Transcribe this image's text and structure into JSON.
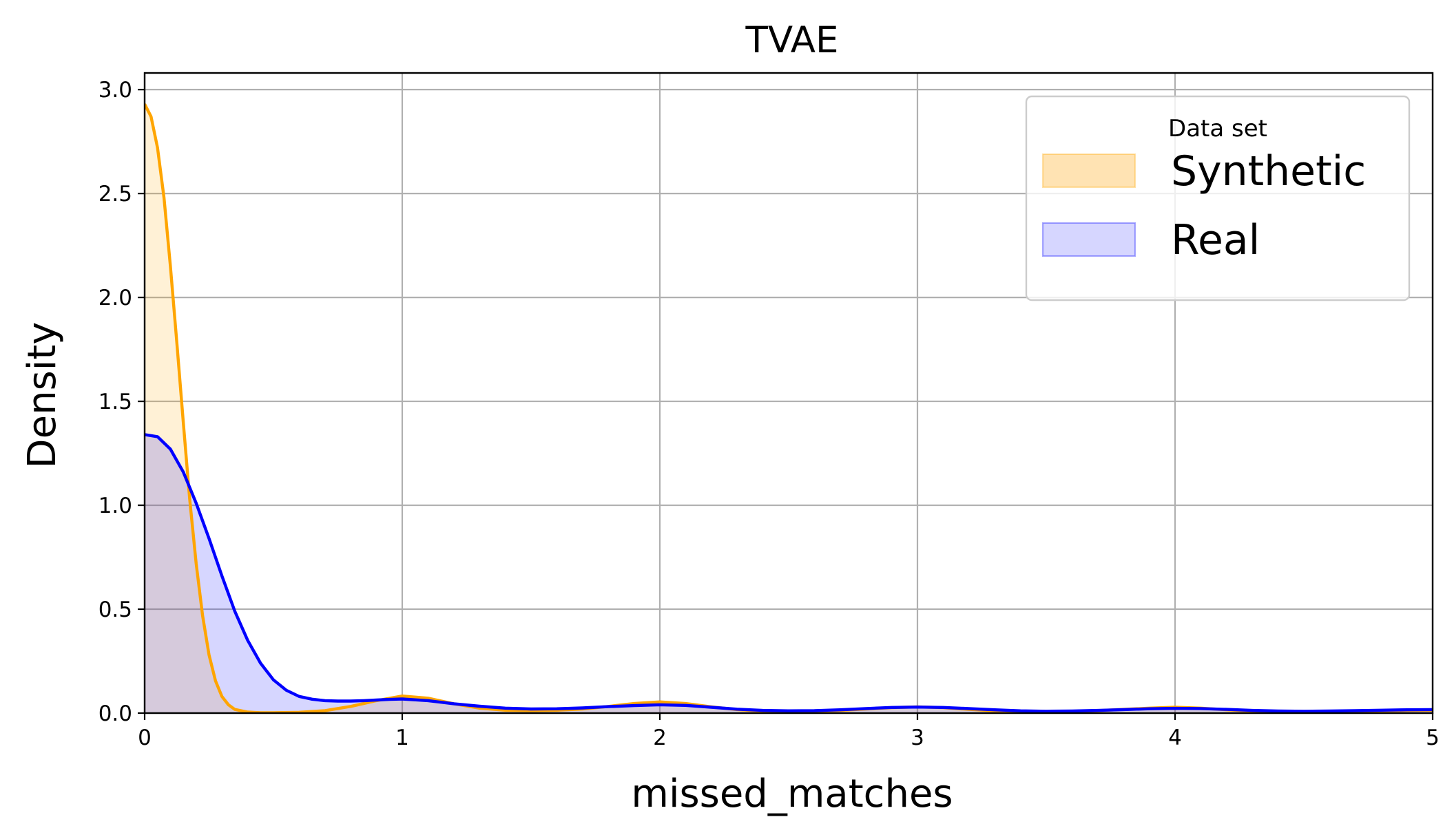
{
  "chart_data": {
    "type": "area",
    "title": "TVAE",
    "xlabel": "missed_matches",
    "ylabel": "Density",
    "xlim": [
      0,
      5
    ],
    "ylim": [
      0,
      3.08
    ],
    "xticks": [
      0,
      1,
      2,
      3,
      4,
      5
    ],
    "xtick_labels": [
      "0",
      "1",
      "2",
      "3",
      "4",
      "5"
    ],
    "yticks": [
      0,
      0.5,
      1,
      1.5,
      2,
      2.5,
      3
    ],
    "ytick_labels": [
      "0.0",
      "0.5",
      "1.0",
      "1.5",
      "2.0",
      "2.5",
      "3.0"
    ],
    "grid": true,
    "legend": {
      "title": "Data set",
      "placement": "top-right",
      "entries": [
        "Synthetic",
        "Real"
      ]
    },
    "series": [
      {
        "name": "Synthetic",
        "line_color": "#FFA500",
        "fill_color": "#FFE3B3",
        "x": [
          0,
          0.025,
          0.05,
          0.075,
          0.1,
          0.125,
          0.15,
          0.175,
          0.2,
          0.225,
          0.25,
          0.275,
          0.3,
          0.325,
          0.35,
          0.4,
          0.45,
          0.5,
          0.6,
          0.7,
          0.8,
          0.9,
          1.0,
          1.1,
          1.2,
          1.3,
          1.4,
          1.5,
          1.6,
          1.7,
          1.8,
          1.9,
          2.0,
          2.1,
          2.2,
          2.3,
          2.4,
          2.5,
          2.6,
          2.7,
          2.8,
          2.9,
          3.0,
          3.1,
          3.2,
          3.3,
          3.4,
          3.5,
          3.6,
          3.7,
          3.8,
          3.9,
          4.0,
          4.1,
          4.2,
          4.3,
          4.4,
          4.5,
          4.6,
          4.7,
          4.8,
          4.9,
          5.0
        ],
        "y": [
          2.93,
          2.87,
          2.72,
          2.48,
          2.15,
          1.78,
          1.4,
          1.03,
          0.72,
          0.47,
          0.28,
          0.155,
          0.08,
          0.04,
          0.018,
          0.005,
          0.002,
          0.002,
          0.004,
          0.012,
          0.032,
          0.06,
          0.082,
          0.072,
          0.045,
          0.024,
          0.014,
          0.012,
          0.014,
          0.02,
          0.032,
          0.046,
          0.054,
          0.046,
          0.03,
          0.017,
          0.01,
          0.008,
          0.009,
          0.013,
          0.02,
          0.026,
          0.03,
          0.026,
          0.018,
          0.011,
          0.007,
          0.006,
          0.008,
          0.012,
          0.018,
          0.024,
          0.028,
          0.024,
          0.016,
          0.01,
          0.007,
          0.006,
          0.007,
          0.009,
          0.011,
          0.013,
          0.014
        ]
      },
      {
        "name": "Real",
        "line_color": "#0000FF",
        "fill_color": "#D6D6FF",
        "x": [
          0,
          0.05,
          0.1,
          0.15,
          0.2,
          0.25,
          0.3,
          0.35,
          0.4,
          0.45,
          0.5,
          0.55,
          0.6,
          0.65,
          0.7,
          0.75,
          0.8,
          0.85,
          0.9,
          0.95,
          1.0,
          1.1,
          1.2,
          1.3,
          1.4,
          1.5,
          1.6,
          1.7,
          1.8,
          1.9,
          2.0,
          2.1,
          2.2,
          2.3,
          2.4,
          2.5,
          2.6,
          2.7,
          2.8,
          2.9,
          3.0,
          3.1,
          3.2,
          3.3,
          3.4,
          3.5,
          3.6,
          3.7,
          3.8,
          3.9,
          4.0,
          4.1,
          4.2,
          4.3,
          4.4,
          4.5,
          4.6,
          4.7,
          4.8,
          4.9,
          5.0
        ],
        "y": [
          1.34,
          1.33,
          1.27,
          1.16,
          1.01,
          0.84,
          0.66,
          0.49,
          0.35,
          0.24,
          0.16,
          0.11,
          0.08,
          0.067,
          0.06,
          0.058,
          0.058,
          0.06,
          0.063,
          0.066,
          0.068,
          0.06,
          0.045,
          0.033,
          0.024,
          0.02,
          0.021,
          0.025,
          0.031,
          0.036,
          0.04,
          0.037,
          0.028,
          0.019,
          0.013,
          0.011,
          0.012,
          0.016,
          0.022,
          0.027,
          0.029,
          0.027,
          0.022,
          0.016,
          0.011,
          0.009,
          0.01,
          0.013,
          0.017,
          0.021,
          0.023,
          0.022,
          0.018,
          0.013,
          0.01,
          0.009,
          0.01,
          0.012,
          0.014,
          0.016,
          0.017
        ]
      }
    ]
  }
}
